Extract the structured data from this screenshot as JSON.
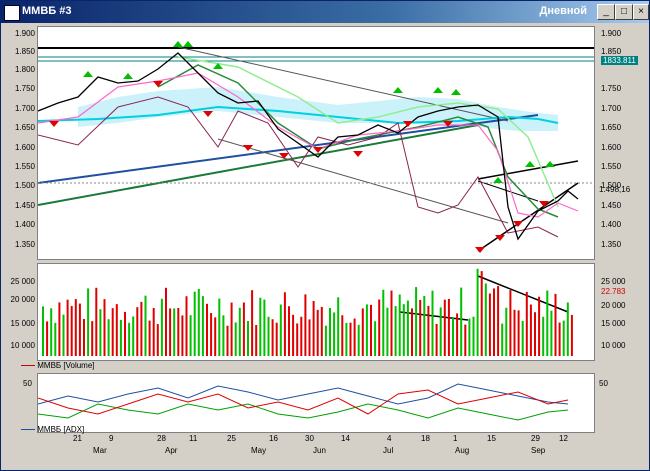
{
  "window": {
    "title": "ММВБ #3",
    "mode": "Дневной"
  },
  "price_panel": {
    "ticks": [
      "1.900",
      "1.850",
      "1.800",
      "1.750",
      "1.700",
      "1.650",
      "1.600",
      "1.550",
      "1.500",
      "1.450",
      "1.400",
      "1.350"
    ],
    "right_ticks": [
      "1.900",
      "1.850",
      "1.750",
      "1.700",
      "1.650",
      "1.600",
      "1.550",
      "1.500",
      "1.450",
      "1.400",
      "1.350"
    ],
    "current_value": "1833.811",
    "last_value": "1.498,16"
  },
  "volume_panel": {
    "legend": "ММВБ [Volume]",
    "ticks": [
      "25 000",
      "20 000",
      "15 000",
      "10 000"
    ],
    "right_ticks": [
      "25 000",
      "20 000",
      "15 000",
      "10 000"
    ],
    "current_value": "22.783"
  },
  "adx_panel": {
    "legend": "ММВБ [ADX]",
    "ticks": [
      "50"
    ],
    "right_ticks": [
      "50"
    ]
  },
  "date_axis": {
    "days": [
      "21",
      "9",
      "28",
      "11",
      "25",
      "16",
      "30",
      "14",
      "4",
      "18",
      "1",
      "15",
      "29",
      "12"
    ],
    "months": [
      "Mar",
      "Apr",
      "May",
      "Jun",
      "Jul",
      "Aug",
      "Sep"
    ]
  },
  "colors": {
    "up": "#00c000",
    "down": "#e00000",
    "ma_blue": "#1e4fa0",
    "ma_cyan": "#00d0e0",
    "ma_green": "#1a7a3a"
  },
  "chart_data": {
    "type": "line",
    "xlabel": "",
    "ylabel": "",
    "ylim": [
      1350,
      1900
    ],
    "series": [
      {
        "values": [
          1700,
          1720,
          1760,
          1780,
          1760,
          1800,
          1840,
          1860,
          1780,
          1720,
          1700,
          1740,
          1680,
          1620,
          1600,
          1590,
          1640,
          1660,
          1650,
          1620,
          1640,
          1680,
          1700,
          1720,
          1720,
          1700,
          1680,
          1560,
          1400,
          1440,
          1470,
          1480,
          1500,
          1510,
          1520,
          1500
        ]
      }
    ]
  }
}
